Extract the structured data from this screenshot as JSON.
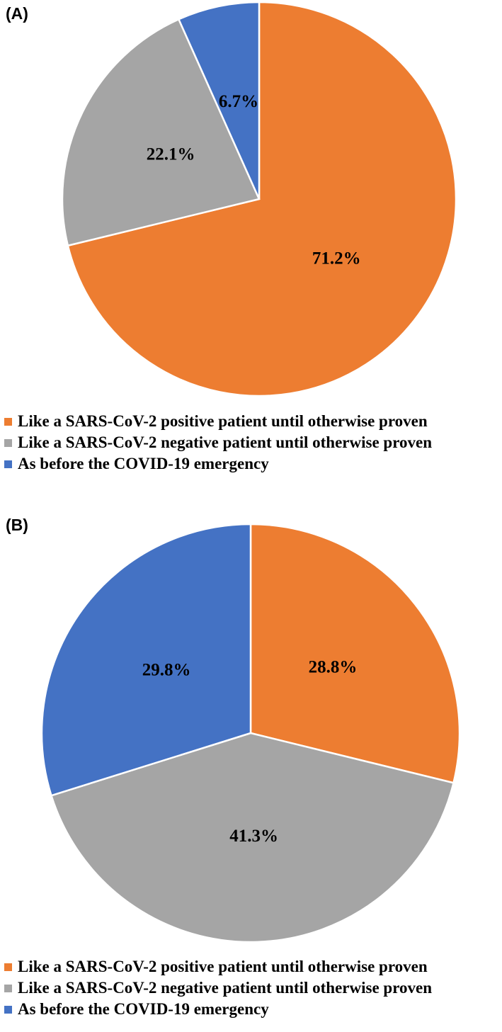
{
  "colors": {
    "orange": "#ED7D31",
    "gray": "#A5A5A5",
    "blue": "#4472C4"
  },
  "chart_data": [
    {
      "type": "pie",
      "panel_label": "(A)",
      "slices": [
        {
          "label": "Like a SARS-CoV-2 positive patient until otherwise proven",
          "value": 71.2,
          "display": "71.2%",
          "color": "#ED7D31"
        },
        {
          "label": "Like a SARS-CoV-2 negative patient until otherwise proven",
          "value": 22.1,
          "display": "22.1%",
          "color": "#A5A5A5"
        },
        {
          "label": "As before the COVID-19 emergency",
          "value": 6.7,
          "display": "6.7%",
          "color": "#4472C4"
        }
      ],
      "legend_placement": "bottom"
    },
    {
      "type": "pie",
      "panel_label": "(B)",
      "slices": [
        {
          "label": "Like a SARS-CoV-2 positive patient until otherwise proven",
          "value": 28.8,
          "display": "28.8%",
          "color": "#ED7D31"
        },
        {
          "label": "Like a SARS-CoV-2 negative patient until otherwise proven",
          "value": 41.3,
          "display": "41.3%",
          "color": "#A5A5A5"
        },
        {
          "label": "As before the COVID-19 emergency",
          "value": 29.8,
          "display": "29.8%",
          "color": "#4472C4"
        }
      ],
      "legend_placement": "bottom"
    }
  ]
}
